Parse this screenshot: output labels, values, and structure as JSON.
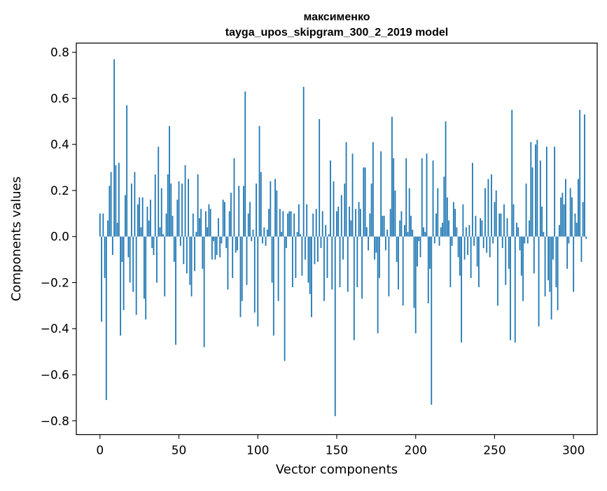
{
  "chart_data": {
    "type": "bar",
    "title": "максименко",
    "subtitle": "tayga_upos_skipgram_300_2_2019 model",
    "xlabel": "Vector components",
    "ylabel": "Components values",
    "xlim": [
      -15,
      315
    ],
    "ylim": [
      -0.86,
      0.84
    ],
    "xticks": [
      0,
      50,
      100,
      150,
      200,
      250,
      300
    ],
    "yticks": [
      -0.8,
      -0.6,
      -0.4,
      -0.2,
      0.0,
      0.2,
      0.4,
      0.6,
      0.8
    ],
    "ytick_labels": [
      "−0.8",
      "−0.6",
      "−0.4",
      "−0.2",
      "0.0",
      "0.2",
      "0.4",
      "0.6",
      "0.8"
    ],
    "bar_color": "#1f77b4",
    "grid": false,
    "legend": "none",
    "values": [
      0.1,
      -0.37,
      0.1,
      -0.18,
      -0.71,
      0.07,
      0.22,
      0.28,
      -0.08,
      0.77,
      0.31,
      0.06,
      0.32,
      -0.43,
      -0.11,
      -0.32,
      0.18,
      0.57,
      -0.09,
      -0.2,
      0.23,
      -0.24,
      0.28,
      -0.34,
      0.14,
      0.17,
      0.04,
      0.17,
      -0.27,
      -0.36,
      0.13,
      0.07,
      0.16,
      -0.05,
      -0.08,
      0.27,
      -0.2,
      0.39,
      0.04,
      0.21,
      0.01,
      -0.26,
      0.1,
      0.27,
      0.48,
      0.23,
      0.09,
      -0.11,
      -0.47,
      0.16,
      0.24,
      -0.04,
      0.23,
      -0.12,
      0.31,
      -0.16,
      0.25,
      -0.21,
      -0.26,
      0.1,
      -0.15,
      0.02,
      0.27,
      0.08,
      0.12,
      -0.14,
      -0.48,
      0.11,
      0.04,
      0.14,
      0.12,
      -0.1,
      -0.02,
      -0.1,
      -0.08,
      0.08,
      -0.09,
      -0.03,
      0.16,
      0.15,
      -0.05,
      -0.23,
      0.11,
      0.19,
      -0.18,
      0.34,
      -0.07,
      -0.06,
      0.22,
      -0.35,
      -0.28,
      0.22,
      0.63,
      -0.21,
      0.1,
      0.15,
      -0.02,
      0.03,
      -0.33,
      0.23,
      -0.39,
      0.48,
      0.28,
      -0.03,
      0.04,
      -0.04,
      0.03,
      0.12,
      0.24,
      -0.2,
      -0.43,
      0.25,
      0.2,
      -0.28,
      0.12,
      0.02,
      0.11,
      -0.54,
      -0.05,
      0.1,
      0.11,
      0.11,
      -0.22,
      0.1,
      -0.18,
      0.02,
      0.14,
      0.01,
      -0.17,
      0.65,
      -0.1,
      0.14,
      -0.2,
      -0.25,
      -0.35,
      0.1,
      -0.12,
      0.12,
      -0.11,
      0.51,
      -0.05,
      0.11,
      -0.28,
      0.05,
      -0.18,
      0.01,
      0.33,
      -0.23,
      0.24,
      -0.78,
      0.11,
      0.13,
      -0.22,
      0.18,
      -0.1,
      0.23,
      0.41,
      -0.24,
      0.13,
      0.07,
      0.36,
      -0.45,
      0.12,
      -0.22,
      0.15,
      0.12,
      -0.27,
      0.3,
      0.3,
      0.04,
      -0.06,
      0.1,
      0.23,
      0.41,
      -0.1,
      -0.07,
      -0.42,
      -0.18,
      0.37,
      0.09,
      0.09,
      -0.06,
      0.03,
      -0.26,
      0.12,
      0.52,
      0.34,
      0.2,
      -0.11,
      -0.23,
      0.07,
      0.11,
      -0.3,
      0.05,
      0.34,
      0.02,
      0.21,
      0.09,
      0.03,
      -0.31,
      -0.42,
      -0.13,
      -0.02,
      -0.09,
      0.34,
      0.04,
      0.02,
      0.36,
      -0.29,
      -0.14,
      -0.73,
      0.33,
      -0.03,
      0.1,
      0.21,
      -0.04,
      0.04,
      0.06,
      0.26,
      0.5,
      0.17,
      0.07,
      -0.22,
      -0.04,
      0.15,
      0.12,
      0.04,
      -0.09,
      -0.17,
      -0.46,
      0.14,
      -0.1,
      0.04,
      -0.08,
      0.05,
      -0.18,
      0.32,
      -0.04,
      0.09,
      -0.13,
      -0.22,
      0.08,
      0.07,
      -0.05,
      0.21,
      -0.07,
      0.25,
      -0.09,
      0.27,
      -0.03,
      0.15,
      0.2,
      -0.3,
      0.1,
      0.1,
      -0.05,
      0.14,
      -0.21,
      0.08,
      -0.14,
      -0.45,
      0.55,
      0.14,
      -0.46,
      0.06,
      0.04,
      -0.06,
      -0.17,
      -0.28,
      -0.03,
      0.23,
      -0.03,
      0.07,
      0.41,
      0.3,
      -0.16,
      0.4,
      0.42,
      -0.39,
      0.33,
      0.13,
      0.02,
      -0.26,
      0.39,
      -0.19,
      -0.24,
      -0.36,
      -0.1,
      0.39,
      -0.22,
      -0.32,
      0.05,
      0.17,
      0.19,
      0.14,
      0.25,
      -0.14,
      -0.03,
      0.21,
      0.17,
      -0.24,
      0.1,
      0.06,
      0.25,
      0.55,
      -0.11,
      0.15,
      0.53,
      -0.01
    ]
  }
}
